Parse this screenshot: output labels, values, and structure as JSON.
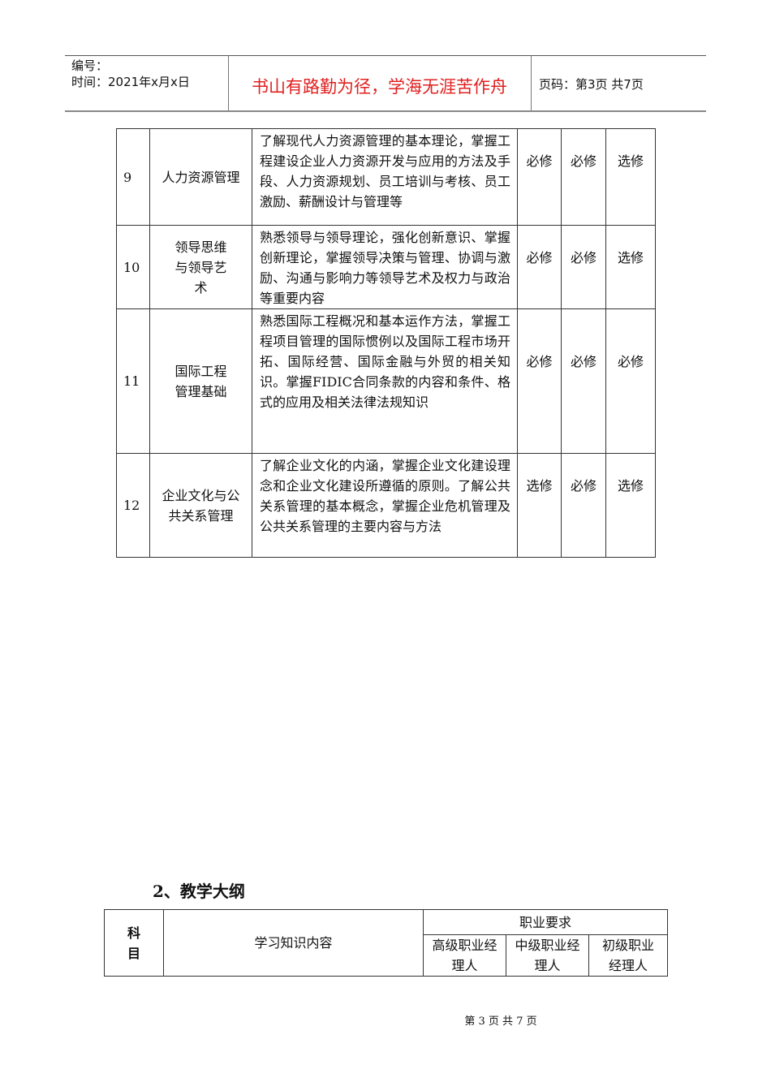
{
  "header": {
    "number_label": "编号：",
    "time_label": "时间：2021年x月x日",
    "motto": "书山有路勤为径，学海无涯苦作舟",
    "page_label": "页码：第3页 共7页",
    "motto_color": "#e02020"
  },
  "courses": [
    {
      "no": "9",
      "name": "人力资源管理",
      "desc": "了解现代人力资源管理的基本理论，掌握工程建设企业人力资源开发与应用的方法及手段、人力资源规划、员工培训与考核、员工激励、薪酬设计与管理等",
      "senior": "必修",
      "middle": "必修",
      "junior": "选修"
    },
    {
      "no": "10",
      "name": "领导思维与领导艺术",
      "desc": "熟悉领导与领导理论，强化创新意识、掌握创新理论，掌握领导决策与管理、协调与激励、沟通与影响力等领导艺术及权力与政治等重要内容",
      "senior": "必修",
      "middle": "必修",
      "junior": "选修"
    },
    {
      "no": "11",
      "name": "国际工程管理基础",
      "desc": "熟悉国际工程概况和基本运作方法，掌握工程项目管理的国际惯例以及国际工程市场开拓、国际经营、国际金融与外贸的相关知识。掌握FIDIC合同条款的内容和条件、格式的应用及相关法律法规知识",
      "senior": "必修",
      "middle": "必修",
      "junior": "必修"
    },
    {
      "no": "12",
      "name": "企业文化与公共关系管理",
      "desc": "了解企业文化的内涵，掌握企业文化建设理念和企业文化建设所遵循的原则。了解公共关系管理的基本概念，掌握企业危机管理及公共关系管理的主要内容与方法",
      "senior": "选修",
      "middle": "必修",
      "junior": "选修"
    }
  ],
  "section_title": "2、教学大纲",
  "syllabus": {
    "subject": "科目",
    "content": "学习知识内容",
    "requirements": "职业要求",
    "senior": "高级职业经理人",
    "middle": "中级职业经理人",
    "junior": "初级职业经理人"
  },
  "footer": "第 3 页 共 7 页"
}
